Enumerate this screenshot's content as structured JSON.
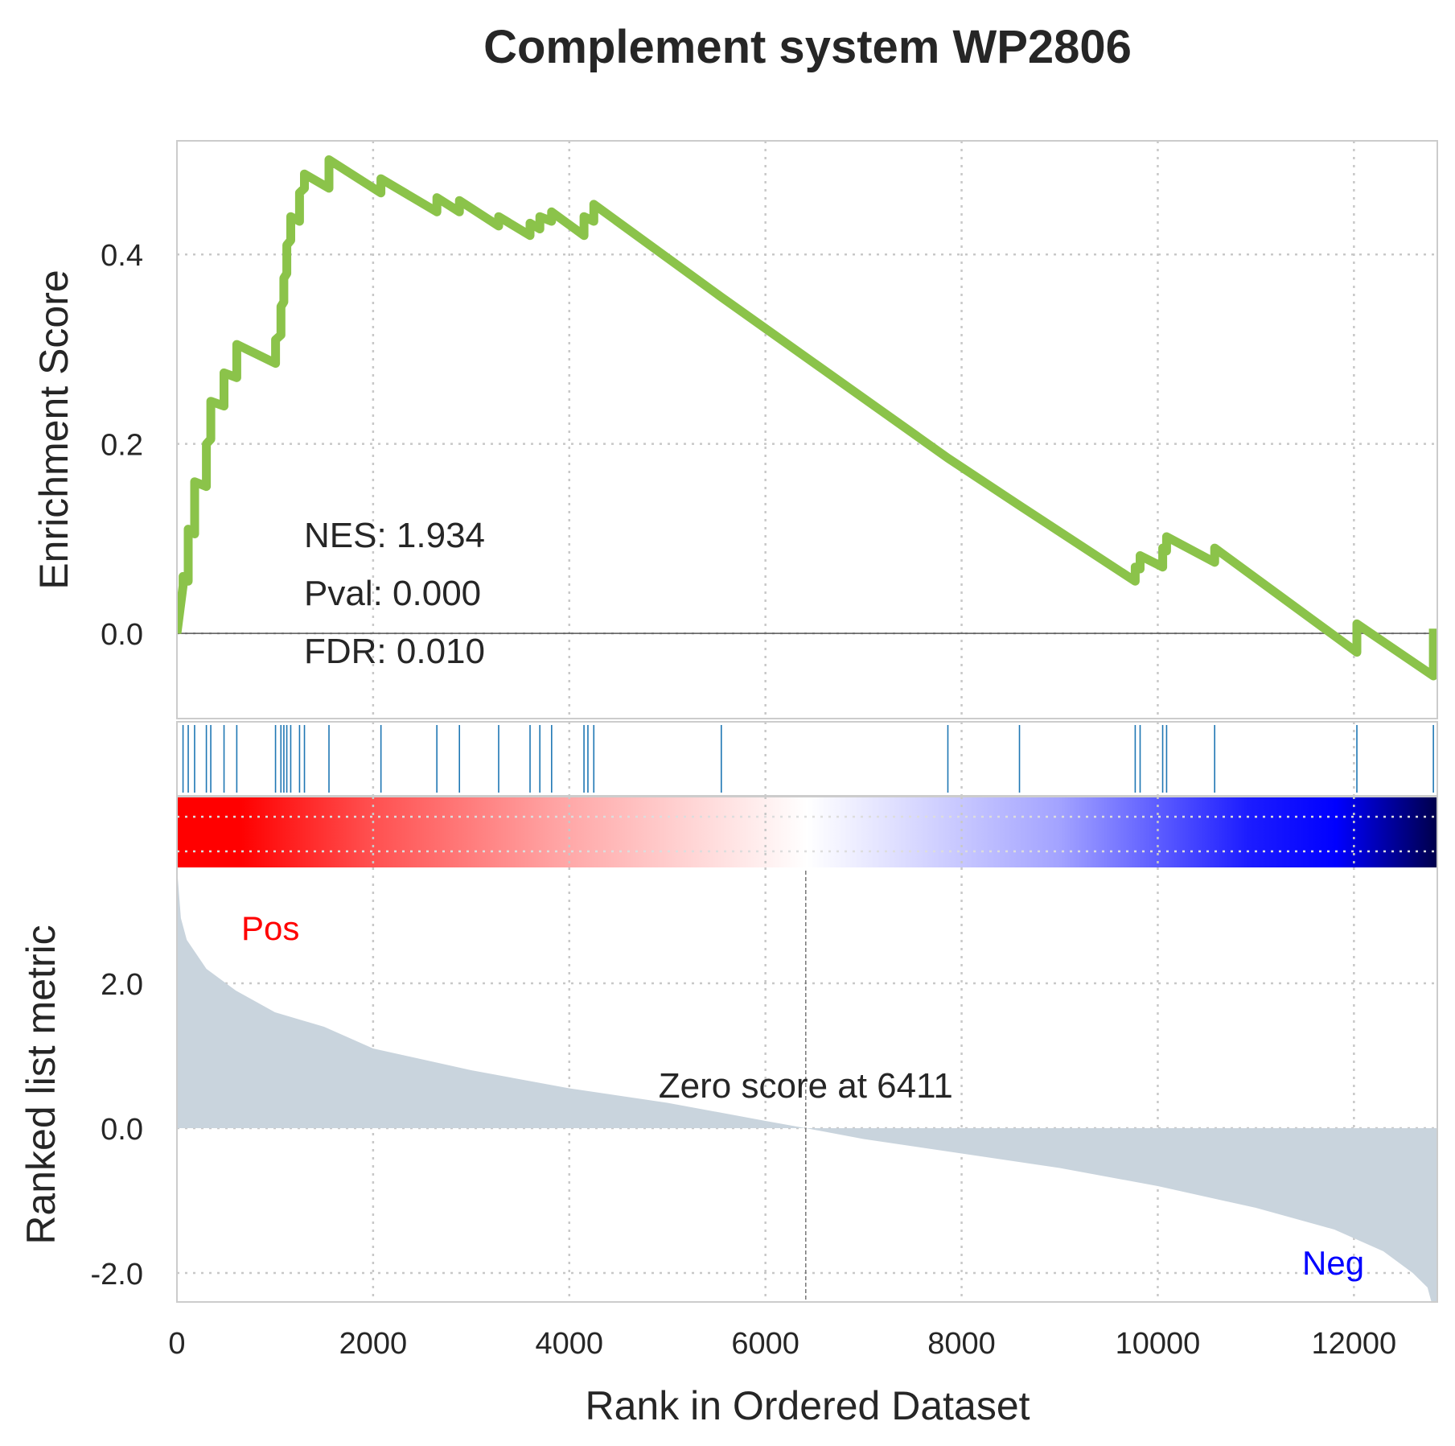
{
  "chart_data": {
    "type": "line",
    "title": "Complement system WP2806",
    "xlabel": "Rank in Ordered Dataset",
    "xlim": [
      0,
      12850
    ],
    "x_ticks": [
      0,
      2000,
      4000,
      6000,
      8000,
      10000,
      12000
    ],
    "x_tick_labels": [
      "0",
      "2000",
      "4000",
      "6000",
      "8000",
      "10000",
      "12000"
    ],
    "grid": true,
    "enrichment": {
      "ylabel": "Enrichment Score",
      "ylim": [
        -0.09,
        0.52
      ],
      "y_ticks": [
        0.0,
        0.2,
        0.4
      ],
      "y_tick_labels": [
        "0.0",
        "0.2",
        "0.4"
      ],
      "line_color": "#8bc34a",
      "baseline": 0.0,
      "points": [
        [
          0,
          0.0
        ],
        [
          62,
          0.05
        ],
        [
          62,
          0.06
        ],
        [
          115,
          0.055
        ],
        [
          115,
          0.11
        ],
        [
          180,
          0.105
        ],
        [
          180,
          0.16
        ],
        [
          300,
          0.155
        ],
        [
          300,
          0.2
        ],
        [
          345,
          0.205
        ],
        [
          345,
          0.245
        ],
        [
          480,
          0.24
        ],
        [
          480,
          0.275
        ],
        [
          610,
          0.27
        ],
        [
          610,
          0.305
        ],
        [
          1005,
          0.285
        ],
        [
          1005,
          0.31
        ],
        [
          1060,
          0.315
        ],
        [
          1060,
          0.345
        ],
        [
          1090,
          0.35
        ],
        [
          1090,
          0.375
        ],
        [
          1120,
          0.38
        ],
        [
          1120,
          0.41
        ],
        [
          1160,
          0.415
        ],
        [
          1160,
          0.44
        ],
        [
          1250,
          0.435
        ],
        [
          1250,
          0.465
        ],
        [
          1300,
          0.47
        ],
        [
          1300,
          0.485
        ],
        [
          1550,
          0.47
        ],
        [
          1550,
          0.5
        ],
        [
          2080,
          0.465
        ],
        [
          2080,
          0.48
        ],
        [
          2650,
          0.445
        ],
        [
          2650,
          0.46
        ],
        [
          2880,
          0.445
        ],
        [
          2880,
          0.457
        ],
        [
          3280,
          0.43
        ],
        [
          3280,
          0.44
        ],
        [
          3600,
          0.42
        ],
        [
          3600,
          0.433
        ],
        [
          3700,
          0.427
        ],
        [
          3700,
          0.44
        ],
        [
          3820,
          0.435
        ],
        [
          3820,
          0.445
        ],
        [
          4150,
          0.42
        ],
        [
          4150,
          0.44
        ],
        [
          4250,
          0.435
        ],
        [
          4250,
          0.453
        ],
        [
          5550,
          0.355
        ],
        [
          7860,
          0.185
        ],
        [
          8590,
          0.135
        ],
        [
          9770,
          0.055
        ],
        [
          9770,
          0.07
        ],
        [
          9820,
          0.068
        ],
        [
          9820,
          0.082
        ],
        [
          10050,
          0.07
        ],
        [
          10050,
          0.09
        ],
        [
          10090,
          0.087
        ],
        [
          10090,
          0.102
        ],
        [
          10580,
          0.075
        ],
        [
          10580,
          0.09
        ],
        [
          12030,
          -0.02
        ],
        [
          12030,
          0.01
        ],
        [
          12810,
          -0.045
        ],
        [
          12810,
          0.005
        ]
      ],
      "annotations": [
        "NES: 1.934",
        "Pval: 0.000",
        "FDR: 0.010"
      ]
    },
    "hits": [
      62,
      115,
      180,
      300,
      345,
      480,
      610,
      1005,
      1060,
      1090,
      1120,
      1160,
      1250,
      1300,
      1550,
      2080,
      2650,
      2880,
      3280,
      3600,
      3700,
      3820,
      4150,
      4190,
      4250,
      5550,
      7860,
      8590,
      9770,
      9820,
      10050,
      10090,
      10580,
      12030,
      12810
    ],
    "hit_color": "#1f77b4",
    "colorbar": {
      "stops": [
        [
          0.0,
          "#ff0000"
        ],
        [
          0.05,
          "#ff0000"
        ],
        [
          0.15,
          "#ff4d4d"
        ],
        [
          0.3,
          "#ffa3a3"
        ],
        [
          0.5,
          "#ffffff"
        ],
        [
          0.7,
          "#a3a3ff"
        ],
        [
          0.85,
          "#1c1cff"
        ],
        [
          0.92,
          "#0000ff"
        ],
        [
          1.0,
          "#00004a"
        ]
      ]
    },
    "ranked": {
      "ylabel": "Ranked list metric",
      "ylim": [
        -2.4,
        3.6
      ],
      "y_ticks": [
        -2.0,
        0.0,
        2.0
      ],
      "y_tick_labels": [
        "-2.0",
        "0.0",
        "2.0"
      ],
      "fill_color": "#c9d4dd",
      "zero_cross": 6411,
      "zero_label": "Zero score at 6411",
      "pos_label": "Pos",
      "neg_label": "Neg",
      "pos_color": "#ff0000",
      "neg_color": "#0000ff",
      "curve": [
        [
          0,
          3.6
        ],
        [
          40,
          2.9
        ],
        [
          100,
          2.6
        ],
        [
          300,
          2.2
        ],
        [
          600,
          1.9
        ],
        [
          1000,
          1.6
        ],
        [
          1500,
          1.4
        ],
        [
          2000,
          1.1
        ],
        [
          3000,
          0.8
        ],
        [
          4000,
          0.55
        ],
        [
          5000,
          0.35
        ],
        [
          6000,
          0.1
        ],
        [
          6411,
          0.0
        ],
        [
          7000,
          -0.15
        ],
        [
          8000,
          -0.35
        ],
        [
          9000,
          -0.55
        ],
        [
          10000,
          -0.8
        ],
        [
          11000,
          -1.1
        ],
        [
          11800,
          -1.4
        ],
        [
          12300,
          -1.7
        ],
        [
          12600,
          -2.0
        ],
        [
          12750,
          -2.2
        ],
        [
          12800,
          -2.45
        ],
        [
          12850,
          -2.45
        ]
      ]
    }
  }
}
